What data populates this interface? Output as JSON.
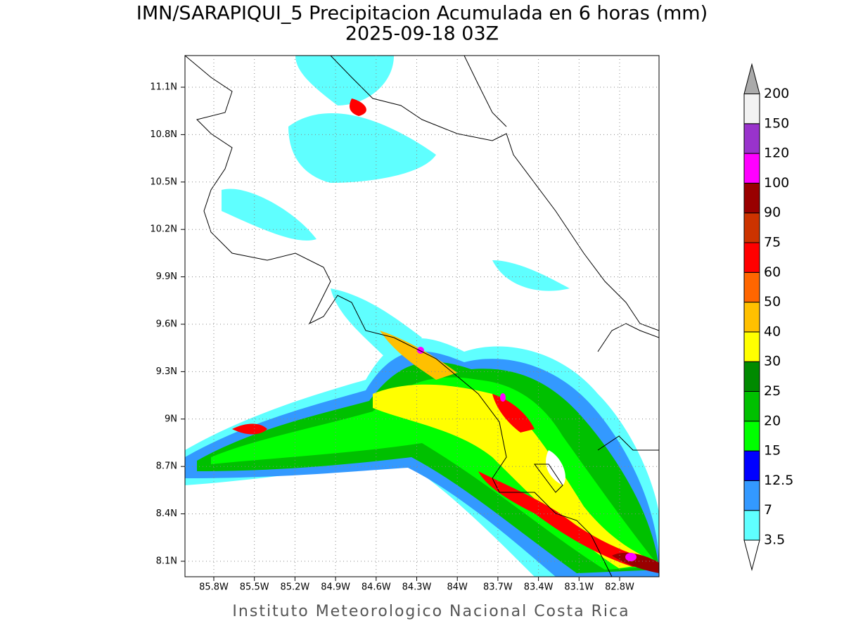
{
  "title": "IMN/SARAPIQUI_5 Precipitacion Acumulada en 6 horas (mm)",
  "subtitle": "2025-09-18 03Z",
  "footer": "Instituto Meteorologico Nacional Costa Rica",
  "map": {
    "lat_labels": [
      "11.1N",
      "10.8N",
      "10.5N",
      "10.2N",
      "9.9N",
      "9.6N",
      "9.3N",
      "9N",
      "8.7N",
      "8.4N",
      "8.1N"
    ],
    "lon_labels": [
      "85.8W",
      "85.5W",
      "85.2W",
      "84.9W",
      "84.6W",
      "84.3W",
      "84W",
      "83.7W",
      "83.4W",
      "83.1W",
      "82.8W"
    ]
  },
  "colorbar": {
    "levels": [
      3.5,
      7,
      12.5,
      15,
      20,
      25,
      30,
      40,
      50,
      60,
      75,
      90,
      100,
      120,
      150,
      200
    ],
    "colors": [
      "#5fffff",
      "#3399ff",
      "#0000ff",
      "#00ff00",
      "#00c000",
      "#008a00",
      "#ffff00",
      "#ffc000",
      "#ff6600",
      "#ff0000",
      "#cc3300",
      "#990000",
      "#ff00ff",
      "#9933cc",
      "#f2f2f2"
    ],
    "below_color": "#ffffff",
    "above_color": "#aaaaaa"
  }
}
